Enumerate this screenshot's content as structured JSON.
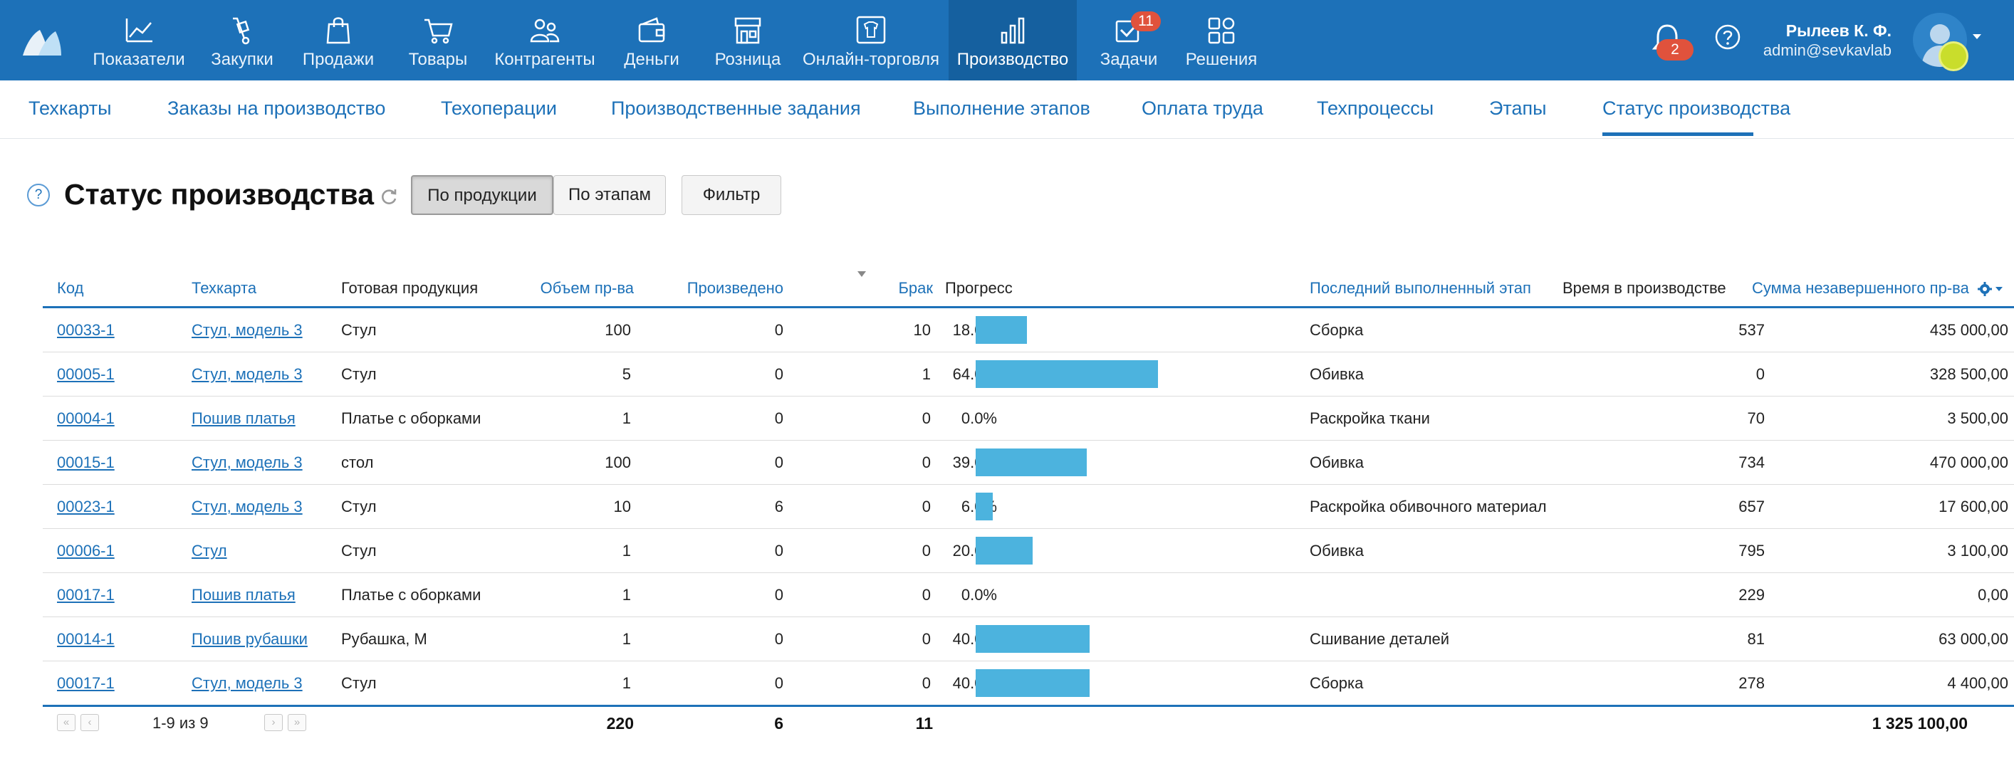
{
  "nav": {
    "items": [
      {
        "label": "Показатели",
        "icon": "chart-line-icon"
      },
      {
        "label": "Закупки",
        "icon": "dolly-icon"
      },
      {
        "label": "Продажи",
        "icon": "shopping-bag-icon"
      },
      {
        "label": "Товары",
        "icon": "cart-icon"
      },
      {
        "label": "Контрагенты",
        "icon": "people-icon"
      },
      {
        "label": "Деньги",
        "icon": "wallet-icon"
      },
      {
        "label": "Розница",
        "icon": "store-icon"
      },
      {
        "label": "Онлайн-торговля",
        "icon": "online-shirt-icon"
      },
      {
        "label": "Производство",
        "icon": "factory-icon",
        "active": true
      },
      {
        "label": "Задачи",
        "icon": "tasks-check-icon",
        "badge": "11"
      },
      {
        "label": "Решения",
        "icon": "apps-grid-icon"
      }
    ],
    "notifications_badge": "2",
    "user_name": "Рылеев К. Ф.",
    "user_email": "admin@sevkavlab"
  },
  "subnav": {
    "items": [
      "Техкарты",
      "Заказы на производство",
      "Техоперации",
      "Производственные задания",
      "Выполнение этапов",
      "Оплата труда",
      "Техпроцессы",
      "Этапы",
      "Статус производства"
    ],
    "active_index": 8
  },
  "page": {
    "help": "?",
    "title": "Статус производства",
    "btn_by_product": "По продукции",
    "btn_by_stage": "По этапам",
    "btn_filter": "Фильтр"
  },
  "table": {
    "columns": {
      "code": "Код",
      "techcard": "Техкарта",
      "product": "Готовая продукция",
      "volume": "Объем пр-ва",
      "produced": "Произведено",
      "defect": "Брак",
      "progress": "Прогресс",
      "last_stage": "Последний выполненный этап",
      "time": "Время в производстве",
      "sum": "Сумма незавершенного пр-ва"
    },
    "rows": [
      {
        "code": "00033-1",
        "techcard": "Стул, модель 3",
        "product": "Стул",
        "volume": "100",
        "produced": "0",
        "defect": "10",
        "progress_text": "18.0%",
        "progress": 0.18,
        "last_stage": "Сборка",
        "time": "537",
        "sum": "435 000,00"
      },
      {
        "code": "00005-1",
        "techcard": "Стул, модель 3",
        "product": "Стул",
        "volume": "5",
        "produced": "0",
        "defect": "1",
        "progress_text": "64.0%",
        "progress": 0.64,
        "last_stage": "Обивка",
        "time": "0",
        "sum": "328 500,00"
      },
      {
        "code": "00004-1",
        "techcard": "Пошив платья",
        "product": "Платье с оборками",
        "volume": "1",
        "produced": "0",
        "defect": "0",
        "progress_text": "0.0%",
        "progress": 0.0,
        "last_stage": "Раскройка ткани",
        "time": "70",
        "sum": "3 500,00"
      },
      {
        "code": "00015-1",
        "techcard": "Стул, модель 3",
        "product": "стол",
        "volume": "100",
        "produced": "0",
        "defect": "0",
        "progress_text": "39.0%",
        "progress": 0.39,
        "last_stage": "Обивка",
        "time": "734",
        "sum": "470 000,00"
      },
      {
        "code": "00023-1",
        "techcard": "Стул, модель 3",
        "product": "Стул",
        "volume": "10",
        "produced": "6",
        "defect": "0",
        "progress_text": "6.0%",
        "progress": 0.06,
        "last_stage": "Раскройка обивочного материал",
        "time": "657",
        "sum": "17 600,00"
      },
      {
        "code": "00006-1",
        "techcard": "Стул",
        "product": "Стул",
        "volume": "1",
        "produced": "0",
        "defect": "0",
        "progress_text": "20.0%",
        "progress": 0.2,
        "last_stage": "Обивка",
        "time": "795",
        "sum": "3 100,00"
      },
      {
        "code": "00017-1",
        "techcard": "Пошив платья",
        "product": "Платье с оборками",
        "volume": "1",
        "produced": "0",
        "defect": "0",
        "progress_text": "0.0%",
        "progress": 0.0,
        "last_stage": "",
        "time": "229",
        "sum": "0,00"
      },
      {
        "code": "00014-1",
        "techcard": "Пошив рубашки",
        "product": "Рубашка, М",
        "volume": "1",
        "produced": "0",
        "defect": "0",
        "progress_text": "40.0%",
        "progress": 0.4,
        "last_stage": "Сшивание деталей",
        "time": "81",
        "sum": "63 000,00"
      },
      {
        "code": "00017-1",
        "techcard": "Стул, модель 3",
        "product": "Стул",
        "volume": "1",
        "produced": "0",
        "defect": "0",
        "progress_text": "40.0%",
        "progress": 0.4,
        "last_stage": "Сборка",
        "time": "278",
        "sum": "4 400,00"
      }
    ],
    "footer": {
      "pager_text": "1-9 из 9",
      "total_volume": "220",
      "total_produced": "6",
      "total_defect": "11",
      "total_sum": "1 325 100,00"
    }
  },
  "colors": {
    "brand": "#1d71b8",
    "progress_bar": "#4cb3de",
    "badge": "#e0523c"
  }
}
